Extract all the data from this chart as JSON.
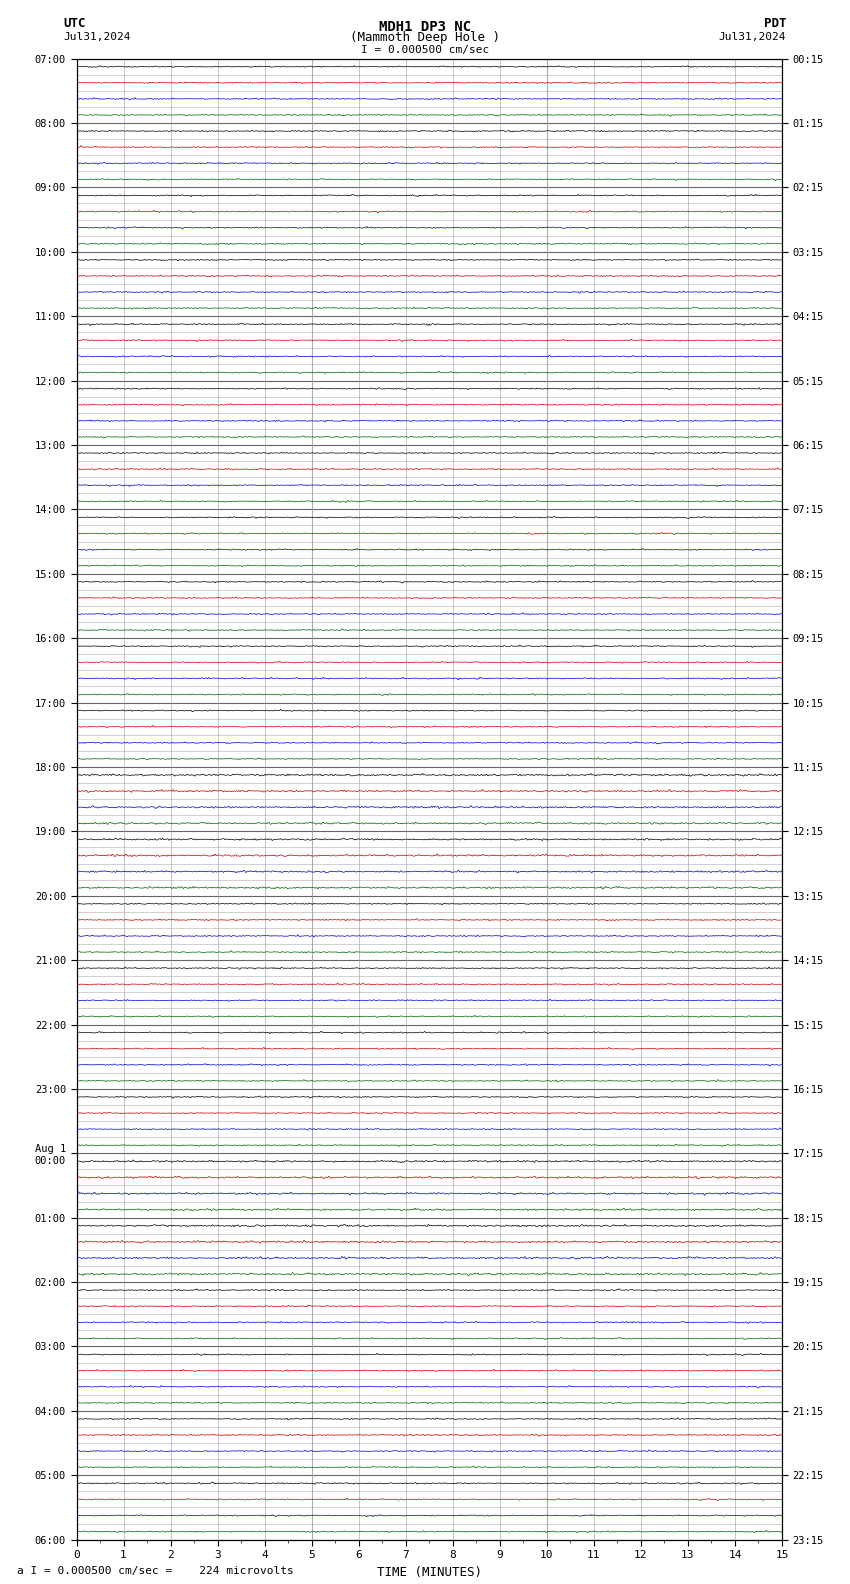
{
  "title_line1": "MDH1 DP3 NC",
  "title_line2": "(Mammoth Deep Hole )",
  "scale_label": "I = 0.000500 cm/sec",
  "bottom_label": "a I = 0.000500 cm/sec =    224 microvolts",
  "utc_label": "UTC",
  "pdt_label": "PDT",
  "utc_date": "Jul31,2024",
  "pdt_date": "Jul31,2024",
  "xlabel": "TIME (MINUTES)",
  "xmin": 0,
  "xmax": 15,
  "background_color": "#ffffff",
  "trace_colors": [
    "#000000",
    "#cc0000",
    "#0000cc",
    "#006600"
  ],
  "num_hours": 23,
  "traces_per_hour": 4,
  "utc_hour_labels": [
    "07:00",
    "08:00",
    "09:00",
    "10:00",
    "11:00",
    "12:00",
    "13:00",
    "14:00",
    "15:00",
    "16:00",
    "17:00",
    "18:00",
    "19:00",
    "20:00",
    "21:00",
    "22:00",
    "23:00",
    "Aug 1\n00:00",
    "01:00",
    "02:00",
    "03:00",
    "04:00",
    "05:00",
    "06:00"
  ],
  "pdt_hour_labels": [
    "00:15",
    "01:15",
    "02:15",
    "03:15",
    "04:15",
    "05:15",
    "06:15",
    "07:15",
    "08:15",
    "09:15",
    "10:15",
    "11:15",
    "12:15",
    "13:15",
    "14:15",
    "15:15",
    "16:15",
    "17:15",
    "18:15",
    "19:15",
    "20:15",
    "21:15",
    "22:15",
    "23:15"
  ],
  "grid_color": "#999999",
  "hour_grid_color": "#666666",
  "noise_amplitude": 0.025,
  "spike_probability": 0.02,
  "spike_amplitude": 0.15,
  "num_samples": 1500
}
